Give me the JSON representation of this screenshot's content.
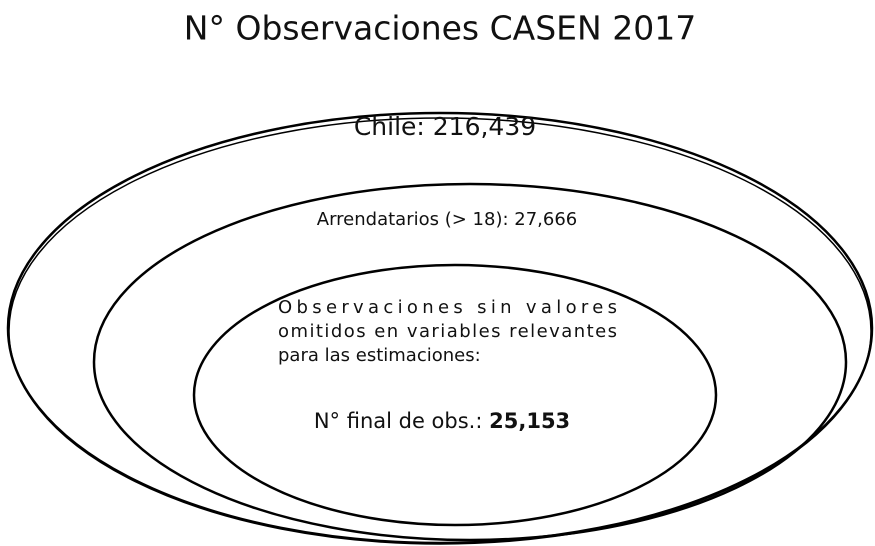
{
  "title": "N° Observaciones CASEN 2017",
  "ellipses": [
    {
      "label": "Chile: 216,439"
    },
    {
      "label": "Arrendatarios (> 18): 27,666"
    },
    {
      "lines": [
        "Observaciones sin valores",
        "omitidos en variables relevantes",
        "para las estimaciones:"
      ],
      "final_label": "N° final de obs.:",
      "final_value": "25,153"
    }
  ]
}
